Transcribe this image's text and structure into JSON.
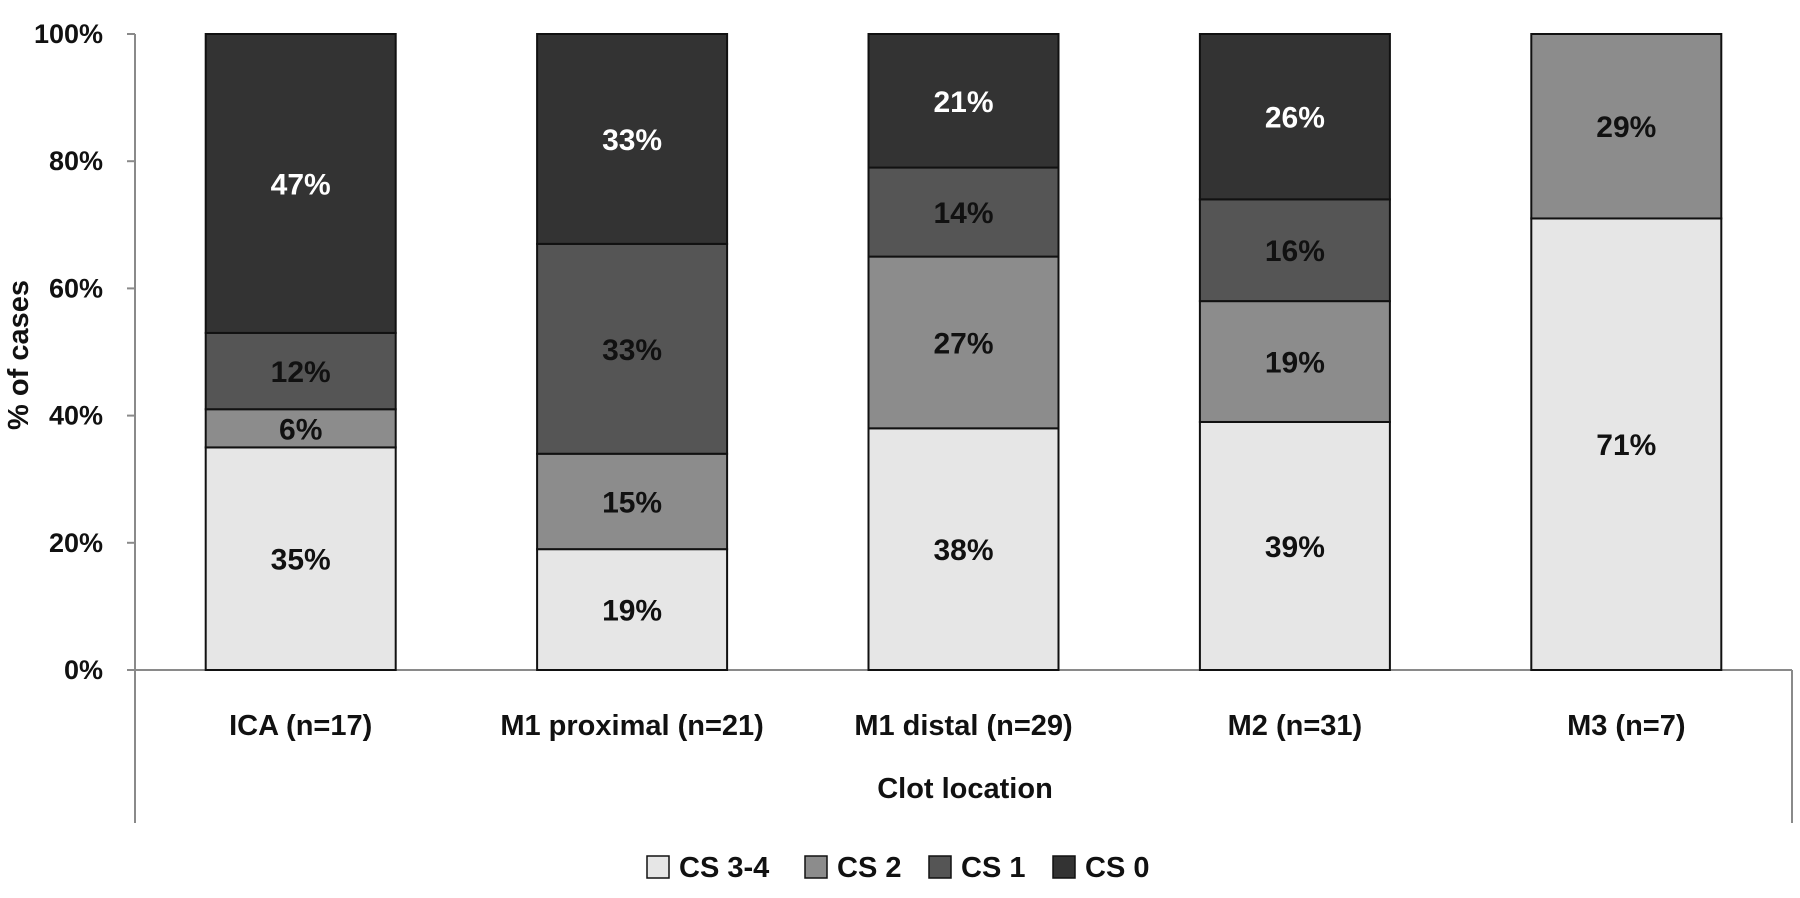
{
  "chart_data": {
    "type": "bar",
    "stacked": true,
    "categories": [
      "ICA (n=17)",
      "M1 proximal (n=21)",
      "M1 distal (n=29)",
      "M2 (n=31)",
      "M3 (n=7)"
    ],
    "series": [
      {
        "name": "CS 3-4",
        "color": "#e6e6e6",
        "label_color": "#111111",
        "values": [
          35,
          19,
          38,
          39,
          71
        ],
        "labels": [
          "35%",
          "19%",
          "38%",
          "39%",
          "71%"
        ]
      },
      {
        "name": "CS 2",
        "color": "#8c8c8c",
        "label_color": "#111111",
        "values": [
          6,
          15,
          27,
          19,
          29
        ],
        "labels": [
          "6%",
          "15%",
          "27%",
          "19%",
          "29%"
        ]
      },
      {
        "name": "CS 1",
        "color": "#555555",
        "label_color": "#111111",
        "values": [
          12,
          33,
          14,
          16,
          0
        ],
        "labels": [
          "12%",
          "33%",
          "14%",
          "16%",
          ""
        ]
      },
      {
        "name": "CS 0",
        "color": "#333333",
        "label_color": "#ffffff",
        "values": [
          47,
          33,
          21,
          26,
          0
        ],
        "labels": [
          "47%",
          "33%",
          "21%",
          "26%",
          ""
        ]
      }
    ],
    "y_ticks": [
      "0%",
      "20%",
      "40%",
      "60%",
      "80%",
      "100%"
    ],
    "ylim": [
      0,
      100
    ],
    "xlabel": "Clot location",
    "ylabel": "% of cases",
    "legend_position": "bottom",
    "grid": false
  }
}
